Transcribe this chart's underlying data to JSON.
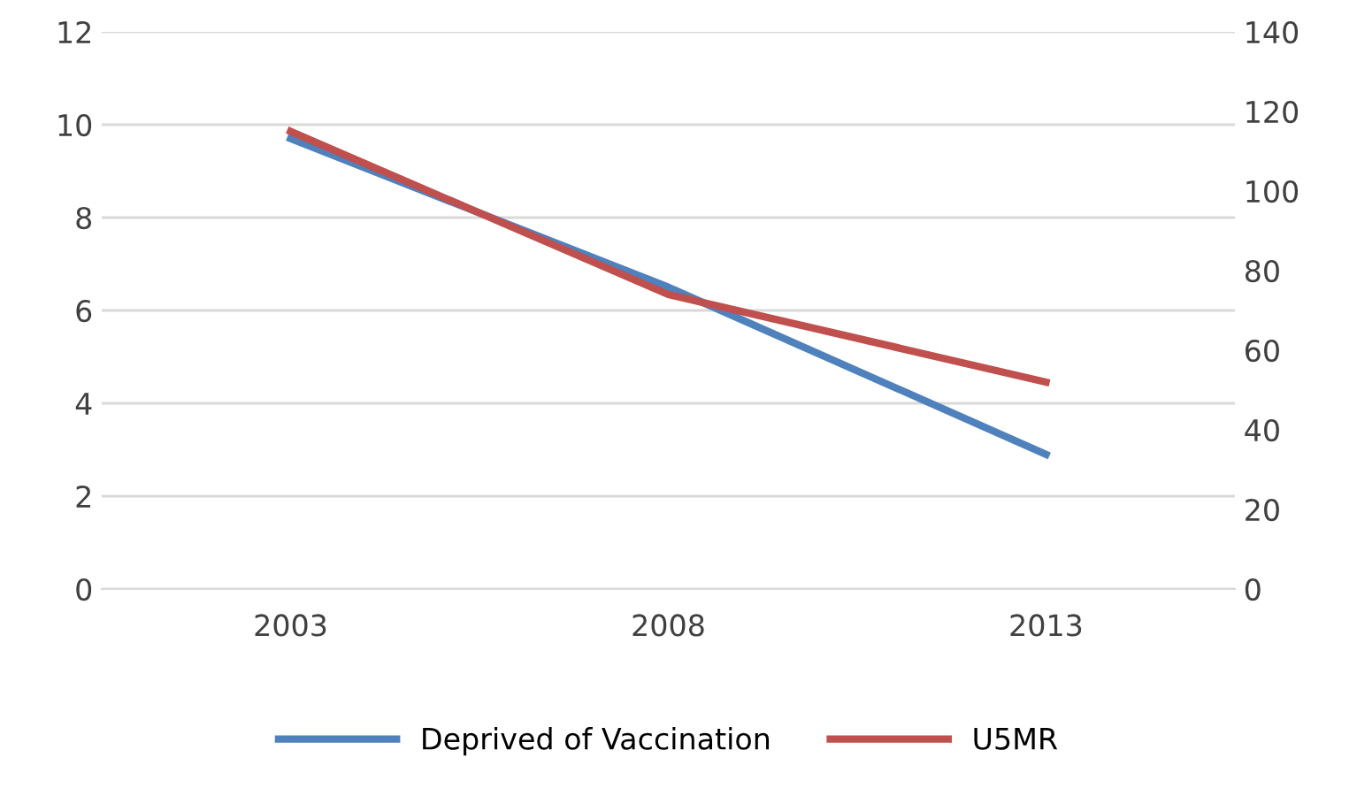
{
  "chart_data": {
    "type": "line",
    "categories": [
      "2003",
      "2008",
      "2013"
    ],
    "series": [
      {
        "name": "Deprived of Vaccination",
        "color": "#4f81bd",
        "values": [
          9.7,
          6.5,
          2.9
        ]
      },
      {
        "name": "U5MR",
        "color": "#c0504d",
        "values": [
          115,
          74,
          52
        ],
        "axis": "y2"
      }
    ],
    "ylim": [
      0,
      12
    ],
    "yticks": [
      0,
      2,
      4,
      6,
      8,
      10,
      12
    ],
    "y2lim": [
      0,
      140
    ],
    "y2ticks": [
      0,
      20,
      40,
      60,
      80,
      100,
      120,
      140
    ],
    "grid": "y",
    "legend": "bottom",
    "marker": "none",
    "line_style": "solid"
  }
}
